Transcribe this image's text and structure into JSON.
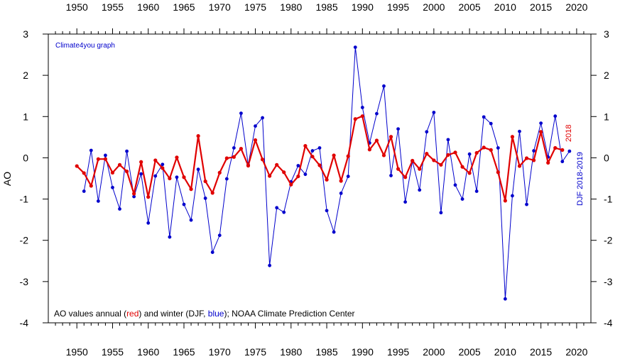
{
  "chart_data": {
    "type": "line",
    "ylabel": "AO",
    "credit": "Climate4you graph",
    "caption": {
      "prefix": "AO values annual (",
      "red_word": "red",
      "middle": ") and winter (DJF, ",
      "blue_word": "blue",
      "suffix": "); NOAA Climate Prediction Center"
    },
    "xlim": [
      1946,
      2022
    ],
    "ylim": [
      -4,
      3
    ],
    "xticks": [
      1950,
      1955,
      1960,
      1965,
      1970,
      1975,
      1980,
      1985,
      1990,
      1995,
      2000,
      2005,
      2010,
      2015,
      2020
    ],
    "yticks": [
      -4,
      -3,
      -2,
      -1,
      0,
      1,
      2,
      3
    ],
    "grid": false,
    "series": [
      {
        "label": "2018",
        "color": "#e00000",
        "x": [
          1950,
          1951,
          1952,
          1953,
          1954,
          1955,
          1956,
          1957,
          1958,
          1959,
          1960,
          1961,
          1962,
          1963,
          1964,
          1965,
          1966,
          1967,
          1968,
          1969,
          1970,
          1971,
          1972,
          1973,
          1974,
          1975,
          1976,
          1977,
          1978,
          1979,
          1980,
          1981,
          1982,
          1983,
          1984,
          1985,
          1986,
          1987,
          1988,
          1989,
          1990,
          1991,
          1992,
          1993,
          1994,
          1995,
          1996,
          1997,
          1998,
          1999,
          2000,
          2001,
          2002,
          2003,
          2004,
          2005,
          2006,
          2007,
          2008,
          2009,
          2010,
          2011,
          2012,
          2013,
          2014,
          2015,
          2016,
          2017,
          2018
        ],
        "values": [
          -0.2,
          -0.37,
          -0.68,
          -0.03,
          -0.03,
          -0.36,
          -0.17,
          -0.33,
          -0.87,
          -0.1,
          -0.95,
          -0.06,
          -0.25,
          -0.5,
          0.01,
          -0.47,
          -0.76,
          0.53,
          -0.57,
          -0.85,
          -0.36,
          -0.01,
          0.02,
          0.22,
          -0.19,
          0.43,
          -0.04,
          -0.44,
          -0.17,
          -0.35,
          -0.65,
          -0.45,
          0.29,
          0.03,
          -0.18,
          -0.53,
          0.06,
          -0.56,
          0.04,
          0.94,
          1.01,
          0.2,
          0.42,
          0.06,
          0.51,
          -0.27,
          -0.47,
          -0.07,
          -0.27,
          0.1,
          -0.06,
          -0.17,
          0.07,
          0.13,
          -0.22,
          -0.37,
          0.12,
          0.25,
          0.19,
          -0.35,
          -1.04,
          0.51,
          -0.2,
          -0.01,
          -0.06,
          0.63,
          -0.12,
          0.24,
          0.19
        ]
      },
      {
        "label": "DJF 2018-2019",
        "color": "#0000cc",
        "x": [
          1951,
          1952,
          1953,
          1954,
          1955,
          1956,
          1957,
          1958,
          1959,
          1960,
          1961,
          1962,
          1963,
          1964,
          1965,
          1966,
          1967,
          1968,
          1969,
          1970,
          1971,
          1972,
          1973,
          1974,
          1975,
          1976,
          1977,
          1978,
          1979,
          1980,
          1981,
          1982,
          1983,
          1984,
          1985,
          1986,
          1987,
          1988,
          1989,
          1990,
          1991,
          1992,
          1993,
          1994,
          1995,
          1996,
          1997,
          1998,
          1999,
          2000,
          2001,
          2002,
          2003,
          2004,
          2005,
          2006,
          2007,
          2008,
          2009,
          2010,
          2011,
          2012,
          2013,
          2014,
          2015,
          2016,
          2017,
          2018,
          2019
        ],
        "values": [
          -0.81,
          0.18,
          -1.05,
          0.06,
          -0.72,
          -1.24,
          0.16,
          -0.94,
          -0.39,
          -1.58,
          -0.44,
          -0.16,
          -1.92,
          -0.47,
          -1.13,
          -1.51,
          -0.28,
          -0.98,
          -2.29,
          -1.88,
          -0.51,
          0.24,
          1.08,
          -0.17,
          0.77,
          0.97,
          -2.61,
          -1.21,
          -1.32,
          -0.58,
          -0.19,
          -0.4,
          0.17,
          0.24,
          -1.28,
          -1.8,
          -0.86,
          -0.45,
          2.68,
          1.22,
          0.36,
          1.07,
          1.74,
          -0.43,
          0.7,
          -1.07,
          -0.08,
          -0.78,
          0.63,
          1.1,
          -1.33,
          0.44,
          -0.66,
          -1.0,
          0.09,
          -0.81,
          0.99,
          0.83,
          0.24,
          -3.42,
          -0.92,
          0.64,
          -1.13,
          0.17,
          0.84,
          0.02,
          1.01,
          -0.09,
          0.16
        ]
      }
    ]
  }
}
